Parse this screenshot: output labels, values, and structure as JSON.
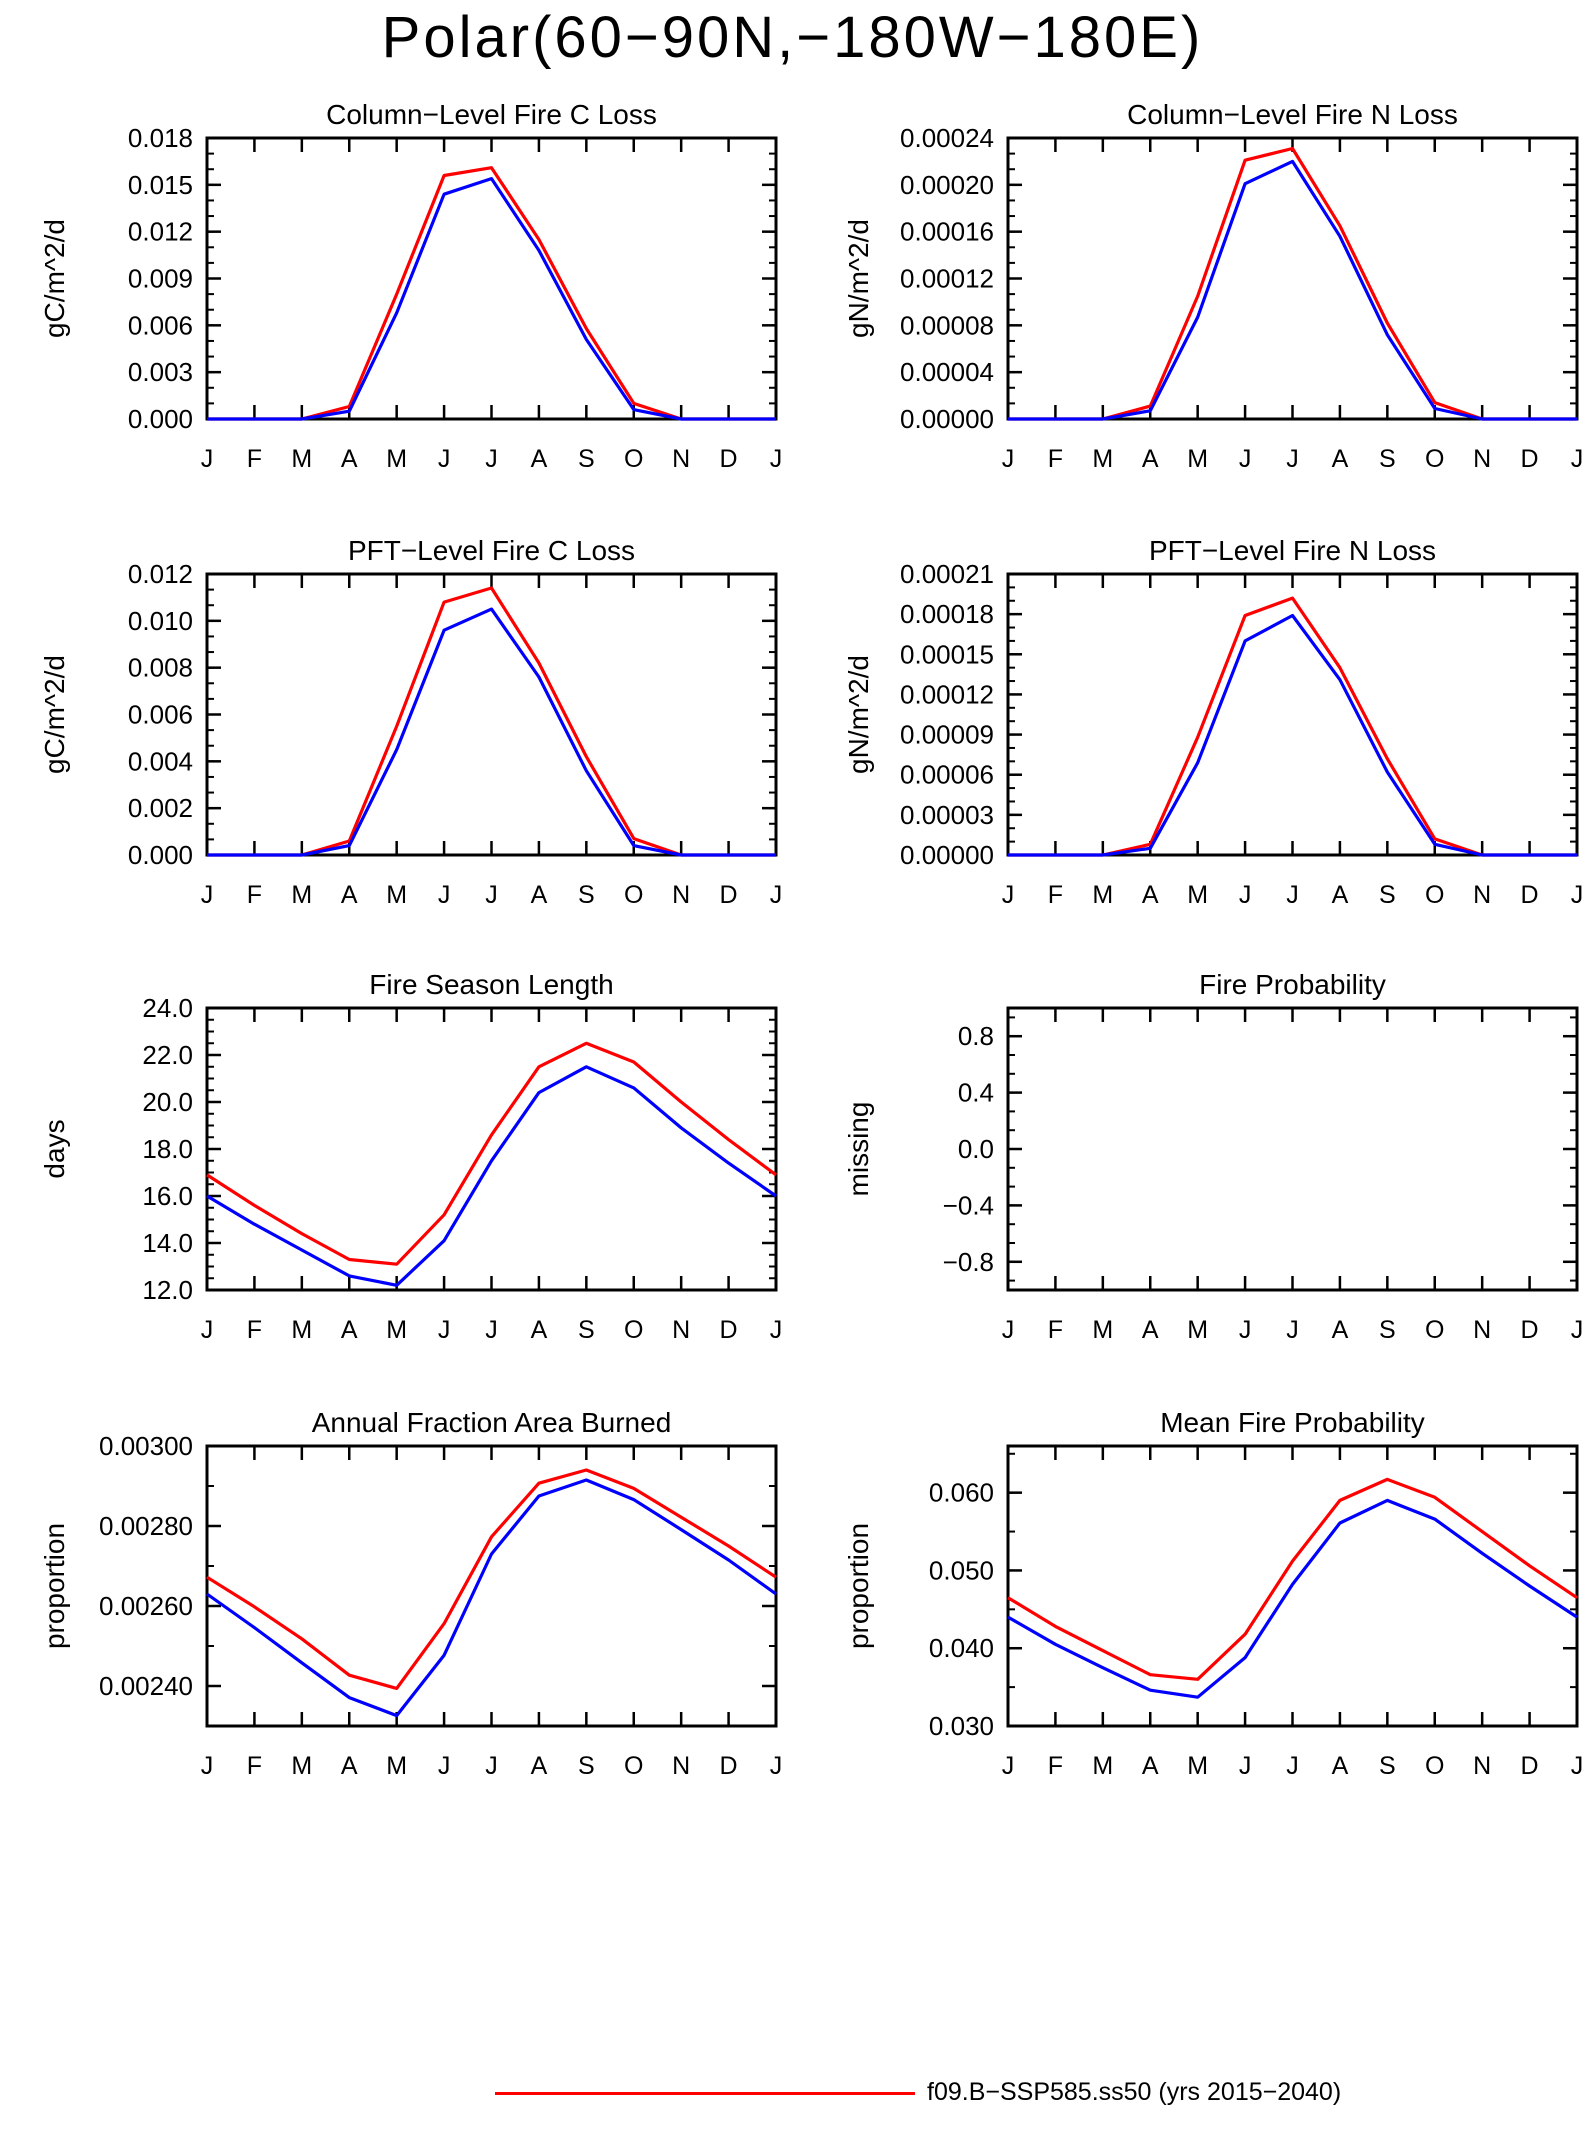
{
  "page_title": "Polar(60−90N,−180W−180E)",
  "legend": {
    "label": "f09.B−SSP585.ss50 (yrs 2015−2040)",
    "color": "#ff0000"
  },
  "colors": {
    "red": "#ff0000",
    "blue": "#0000ff"
  },
  "chart_data": [
    {
      "type": "line",
      "title": "Column−Level Fire C Loss",
      "ylabel": "gC/m^2/d",
      "x": [
        "J",
        "F",
        "M",
        "A",
        "M",
        "J",
        "J",
        "A",
        "S",
        "O",
        "N",
        "D",
        "J"
      ],
      "ylim": [
        0,
        0.018
      ],
      "yticks": [
        "0.000",
        "0.003",
        "0.006",
        "0.009",
        "0.012",
        "0.015",
        "0.018"
      ],
      "series": [
        {
          "color": "#ff0000",
          "values": [
            0,
            0,
            0,
            0.0008,
            0.008,
            0.0156,
            0.0161,
            0.0115,
            0.0058,
            0.001,
            0,
            0,
            0
          ]
        },
        {
          "color": "#0000ff",
          "values": [
            0,
            0,
            0,
            0.0005,
            0.0068,
            0.0144,
            0.0154,
            0.0108,
            0.0051,
            0.0006,
            0,
            0,
            0
          ]
        }
      ]
    },
    {
      "type": "line",
      "title": "Column−Level Fire N Loss",
      "ylabel": "gN/m^2/d",
      "x": [
        "J",
        "F",
        "M",
        "A",
        "M",
        "J",
        "J",
        "A",
        "S",
        "O",
        "N",
        "D",
        "J"
      ],
      "ylim": [
        0,
        0.00024
      ],
      "yticks": [
        "0.00000",
        "0.00004",
        "0.00008",
        "0.00012",
        "0.00016",
        "0.00020",
        "0.00024"
      ],
      "series": [
        {
          "color": "#ff0000",
          "values": [
            0,
            0,
            0,
            1.1e-05,
            0.000105,
            0.000221,
            0.000231,
            0.000165,
            8.2e-05,
            1.4e-05,
            0,
            0,
            0
          ]
        },
        {
          "color": "#0000ff",
          "values": [
            0,
            0,
            0,
            7e-06,
            8.7e-05,
            0.000201,
            0.00022,
            0.000156,
            7.2e-05,
            9e-06,
            0,
            0,
            0
          ]
        }
      ]
    },
    {
      "type": "line",
      "title": "PFT−Level Fire C Loss",
      "ylabel": "gC/m^2/d",
      "x": [
        "J",
        "F",
        "M",
        "A",
        "M",
        "J",
        "J",
        "A",
        "S",
        "O",
        "N",
        "D",
        "J"
      ],
      "ylim": [
        0,
        0.012
      ],
      "yticks": [
        "0.000",
        "0.002",
        "0.004",
        "0.006",
        "0.008",
        "0.010",
        "0.012"
      ],
      "series": [
        {
          "color": "#ff0000",
          "values": [
            0,
            0,
            0,
            0.0006,
            0.0055,
            0.0108,
            0.0114,
            0.0082,
            0.0042,
            0.0007,
            0,
            0,
            0
          ]
        },
        {
          "color": "#0000ff",
          "values": [
            0,
            0,
            0,
            0.0004,
            0.0045,
            0.0096,
            0.0105,
            0.0076,
            0.0036,
            0.0004,
            0,
            0,
            0
          ]
        }
      ]
    },
    {
      "type": "line",
      "title": "PFT−Level Fire N Loss",
      "ylabel": "gN/m^2/d",
      "x": [
        "J",
        "F",
        "M",
        "A",
        "M",
        "J",
        "J",
        "A",
        "S",
        "O",
        "N",
        "D",
        "J"
      ],
      "ylim": [
        0,
        0.00021
      ],
      "yticks": [
        "0.00000",
        "0.00003",
        "0.00006",
        "0.00009",
        "0.00012",
        "0.00015",
        "0.00018",
        "0.00021"
      ],
      "series": [
        {
          "color": "#ff0000",
          "values": [
            0,
            0,
            0,
            8e-06,
            8.8e-05,
            0.000179,
            0.000192,
            0.00014,
            7.2e-05,
            1.2e-05,
            0,
            0,
            0
          ]
        },
        {
          "color": "#0000ff",
          "values": [
            0,
            0,
            0,
            5e-06,
            6.9e-05,
            0.00016,
            0.000179,
            0.000131,
            6.2e-05,
            8e-06,
            0,
            0,
            0
          ]
        }
      ]
    },
    {
      "type": "line",
      "title": "Fire Season Length",
      "ylabel": "days",
      "x": [
        "J",
        "F",
        "M",
        "A",
        "M",
        "J",
        "J",
        "A",
        "S",
        "O",
        "N",
        "D",
        "J"
      ],
      "ylim": [
        12,
        24
      ],
      "yticks": [
        "12.0",
        "14.0",
        "16.0",
        "18.0",
        "20.0",
        "22.0",
        "24.0"
      ],
      "series": [
        {
          "color": "#ff0000",
          "values": [
            16.9,
            15.6,
            14.4,
            13.3,
            13.1,
            15.2,
            18.6,
            21.5,
            22.5,
            21.7,
            20.0,
            18.4,
            16.9
          ]
        },
        {
          "color": "#0000ff",
          "values": [
            16.0,
            14.8,
            13.7,
            12.6,
            12.2,
            14.1,
            17.5,
            20.4,
            21.5,
            20.6,
            18.9,
            17.4,
            16.0
          ]
        }
      ]
    },
    {
      "type": "line",
      "title": "Fire Probability",
      "ylabel": "missing",
      "x": [
        "J",
        "F",
        "M",
        "A",
        "M",
        "J",
        "J",
        "A",
        "S",
        "O",
        "N",
        "D",
        "J"
      ],
      "ylim": [
        -1.0,
        1.0
      ],
      "yticks": [
        "−0.8",
        "−0.4",
        "0.0",
        "0.4",
        "0.8"
      ],
      "ytick_values": [
        -0.8,
        -0.4,
        0.0,
        0.4,
        0.8
      ],
      "series": []
    },
    {
      "type": "line",
      "title": "Annual Fraction Area Burned",
      "ylabel": "proportion",
      "x": [
        "J",
        "F",
        "M",
        "A",
        "M",
        "J",
        "J",
        "A",
        "S",
        "O",
        "N",
        "D",
        "J"
      ],
      "ylim": [
        0.0023,
        0.003
      ],
      "yticks": [
        "0.00240",
        "0.00260",
        "0.00280",
        "0.00300"
      ],
      "ytick_values": [
        0.0024,
        0.0026,
        0.0028,
        0.003
      ],
      "series": [
        {
          "color": "#ff0000",
          "values": [
            0.002672,
            0.002598,
            0.002518,
            0.002427,
            0.002394,
            0.002556,
            0.002773,
            0.002907,
            0.00294,
            0.002894,
            0.002822,
            0.00275,
            0.002672
          ]
        },
        {
          "color": "#0000ff",
          "values": [
            0.00263,
            0.002546,
            0.002458,
            0.002371,
            0.002326,
            0.002477,
            0.00273,
            0.002875,
            0.002915,
            0.002866,
            0.002791,
            0.002715,
            0.00263
          ]
        }
      ]
    },
    {
      "type": "line",
      "title": "Mean Fire Probability",
      "ylabel": "proportion",
      "x": [
        "J",
        "F",
        "M",
        "A",
        "M",
        "J",
        "J",
        "A",
        "S",
        "O",
        "N",
        "D",
        "J"
      ],
      "ylim": [
        0.03,
        0.066
      ],
      "yticks": [
        "0.030",
        "0.040",
        "0.050",
        "0.060"
      ],
      "ytick_values": [
        0.03,
        0.04,
        0.05,
        0.06
      ],
      "series": [
        {
          "color": "#ff0000",
          "values": [
            0.0465,
            0.0428,
            0.0397,
            0.0366,
            0.036,
            0.0418,
            0.0512,
            0.059,
            0.0617,
            0.0594,
            0.055,
            0.0506,
            0.0465
          ]
        },
        {
          "color": "#0000ff",
          "values": [
            0.044,
            0.0405,
            0.0375,
            0.0346,
            0.0337,
            0.0388,
            0.0482,
            0.0561,
            0.059,
            0.0566,
            0.0522,
            0.048,
            0.044
          ]
        }
      ]
    }
  ]
}
